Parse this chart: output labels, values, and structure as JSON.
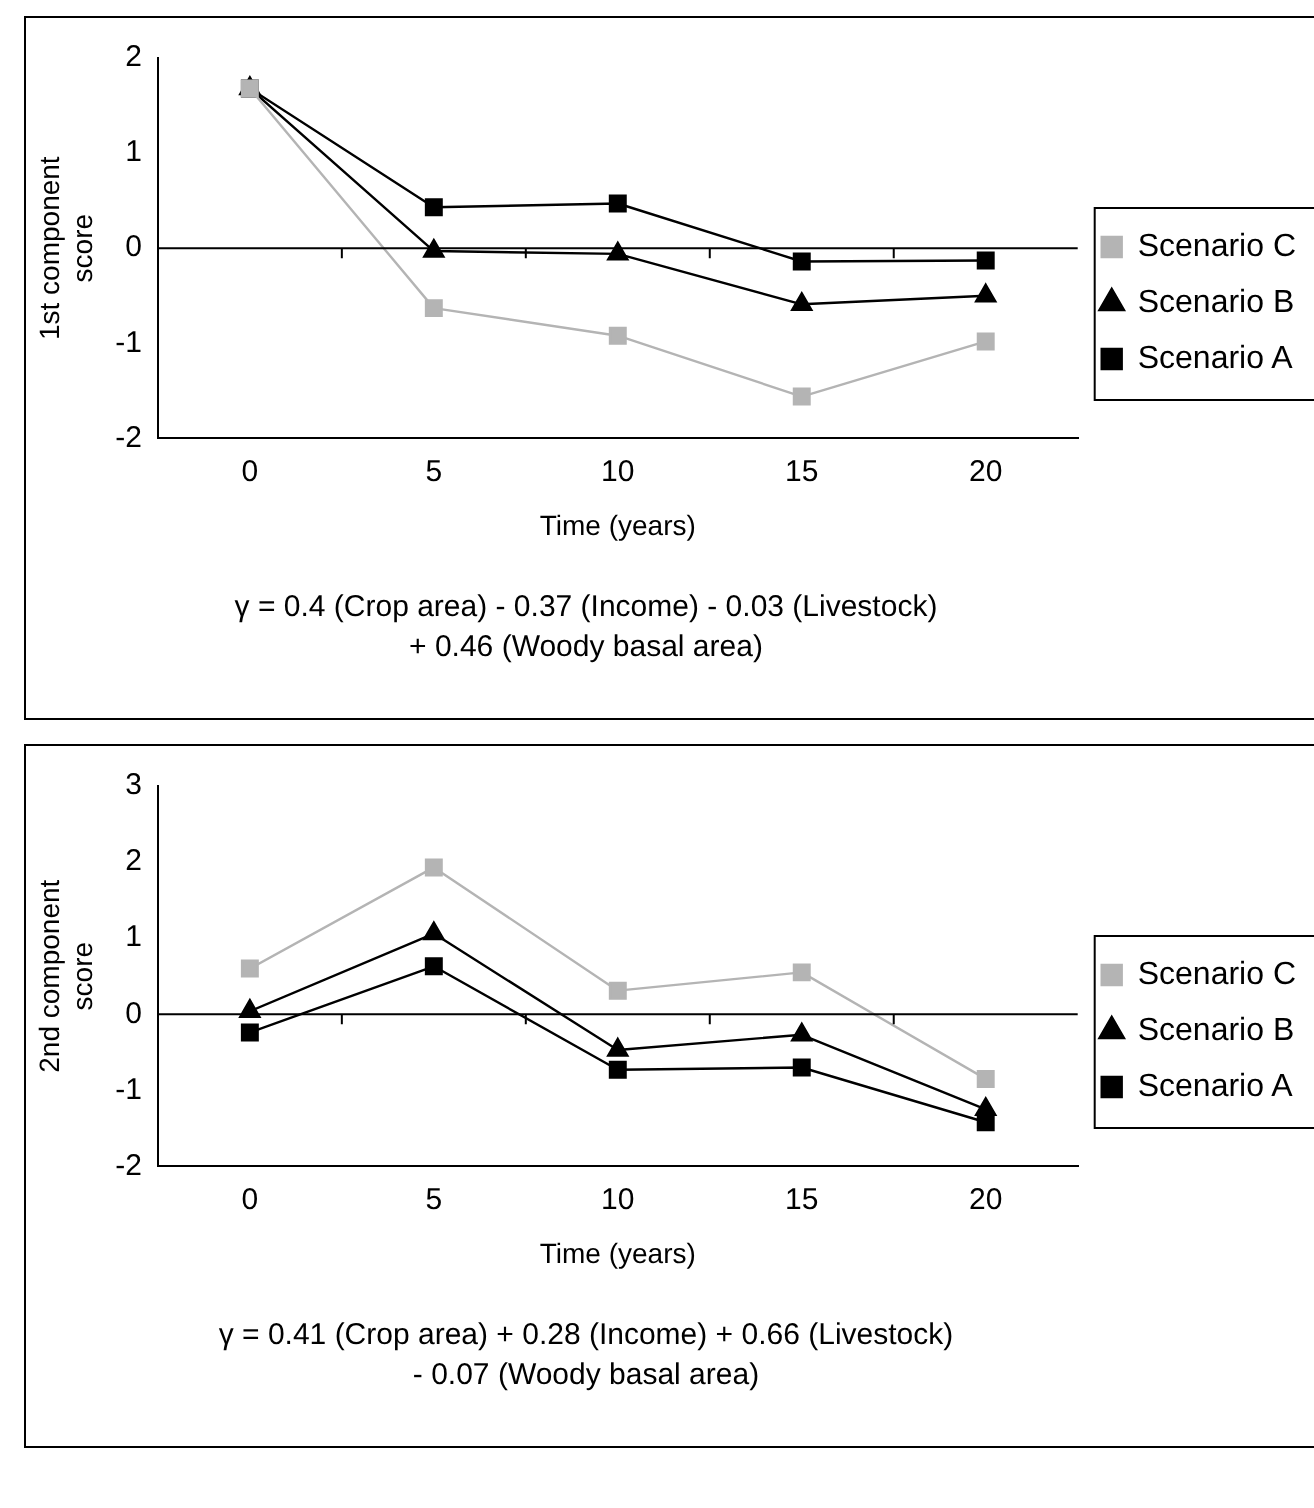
{
  "chart_data": [
    {
      "type": "line",
      "xlabel": "Time (years)",
      "ylabel": "1st component score",
      "categories": [
        "0",
        "5",
        "10",
        "15",
        "20"
      ],
      "ylim": [
        -2,
        2
      ],
      "yticks": [
        -2,
        -1,
        0,
        1,
        2
      ],
      "grid": false,
      "legend": "right",
      "ref_lines": [
        {
          "axis": "y",
          "value": 0,
          "color": "#000000"
        }
      ],
      "series": [
        {
          "name": "Scenario C",
          "color": "#b4b4b4",
          "marker": "square",
          "values": [
            1.68,
            -0.63,
            -0.92,
            -1.56,
            -0.98
          ]
        },
        {
          "name": "Scenario B",
          "color": "#000000",
          "marker": "triangle",
          "values": [
            1.68,
            -0.03,
            -0.06,
            -0.59,
            -0.5
          ]
        },
        {
          "name": "Scenario A",
          "color": "#000000",
          "marker": "square",
          "values": [
            1.68,
            0.43,
            0.47,
            -0.14,
            -0.13
          ]
        }
      ],
      "annotations": [
        "γ = 0.4 (Crop area) - 0.37 (Income) - 0.03 (Livestock)",
        "+ 0.46 (Woody basal area)"
      ]
    },
    {
      "type": "line",
      "xlabel": "Time (years)",
      "ylabel": "2nd component score",
      "categories": [
        "0",
        "5",
        "10",
        "15",
        "20"
      ],
      "ylim": [
        -2,
        3
      ],
      "yticks": [
        -2,
        -1,
        0,
        1,
        2,
        3
      ],
      "grid": false,
      "legend": "right",
      "ref_lines": [
        {
          "axis": "y",
          "value": 0,
          "color": "#000000"
        }
      ],
      "series": [
        {
          "name": "Scenario C",
          "color": "#b4b4b4",
          "marker": "square",
          "values": [
            0.6,
            1.93,
            0.31,
            0.55,
            -0.85
          ]
        },
        {
          "name": "Scenario B",
          "color": "#000000",
          "marker": "triangle",
          "values": [
            0.04,
            1.06,
            -0.47,
            -0.27,
            -1.25
          ]
        },
        {
          "name": "Scenario A",
          "color": "#000000",
          "marker": "square",
          "values": [
            -0.24,
            0.63,
            -0.73,
            -0.7,
            -1.42
          ]
        }
      ],
      "annotations": [
        "γ = 0.41 (Crop area) + 0.28 (Income) + 0.66 (Livestock)",
        "- 0.07 (Woody basal area)"
      ]
    }
  ]
}
